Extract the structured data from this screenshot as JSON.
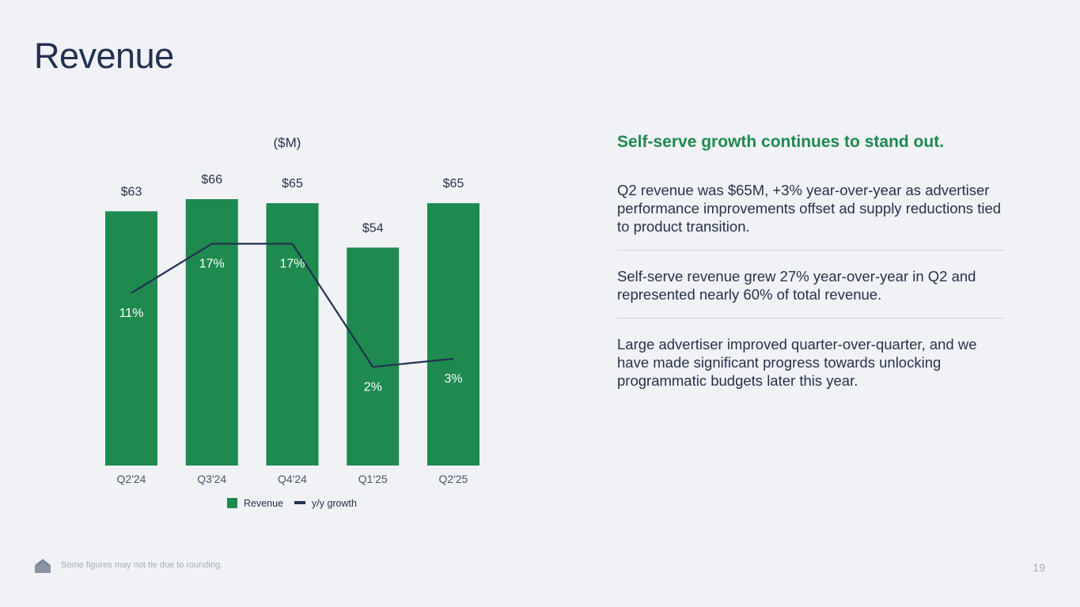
{
  "title": "Revenue",
  "chart_data": {
    "type": "bar",
    "unit_label": "($M)",
    "categories": [
      "Q2'24",
      "Q3'24",
      "Q4'24",
      "Q1'25",
      "Q2'25"
    ],
    "series": [
      {
        "name": "Revenue",
        "type": "bar",
        "values": [
          63,
          66,
          65,
          54,
          65
        ],
        "labels": [
          "$63",
          "$66",
          "$65",
          "$54",
          "$65"
        ],
        "color": "#1e8a4f"
      },
      {
        "name": "y/y growth",
        "type": "line",
        "values": [
          11,
          17,
          17,
          2,
          3
        ],
        "labels": [
          "11%",
          "17%",
          "17%",
          "2%",
          "3%"
        ],
        "color": "#233152"
      }
    ],
    "legend": {
      "position": "bottom-center",
      "entries": [
        "Revenue",
        "y/y growth"
      ]
    },
    "revenue_axis_range": [
      0,
      66
    ],
    "growth_axis_range": [
      -10,
      18
    ]
  },
  "panel": {
    "headline": "Self-serve growth continues to stand out.",
    "paragraphs": [
      "Q2 revenue was $65M, +3% year-over-year as advertiser performance improvements offset ad supply reductions tied to product transition.",
      "Self-serve revenue grew 27% year-over-year in Q2 and represented nearly 60% of total revenue.",
      "Large advertiser improved quarter-over-quarter, and we have made significant progress towards unlocking programmatic budgets later this year."
    ]
  },
  "footer": {
    "note": "Some figures may not tie due to rounding.",
    "page_number": "19",
    "icon": "home-icon"
  },
  "colors": {
    "background": "#f1f2f6",
    "accent_green": "#1e8a4f",
    "navy": "#233152",
    "muted": "#a7adb8"
  }
}
